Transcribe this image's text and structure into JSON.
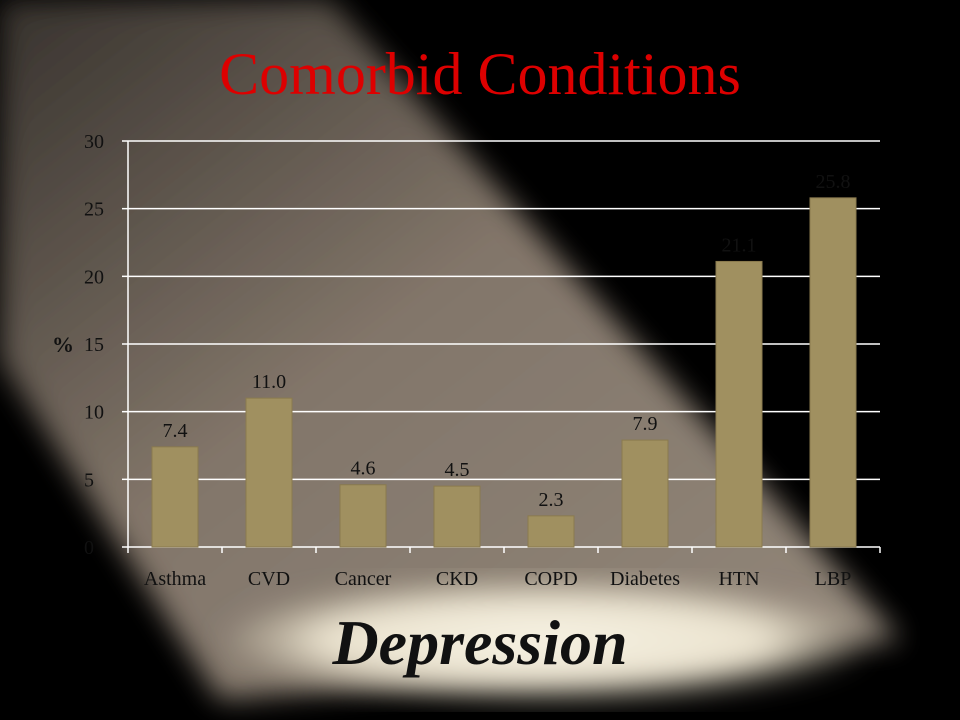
{
  "slide": {
    "title": "Comorbid Conditions",
    "footer": "Depression"
  },
  "colors": {
    "title": "#dd0000",
    "bar": "#a09060",
    "grid": "#ffffff",
    "text": "#111111"
  },
  "chart_data": {
    "type": "bar",
    "title": "",
    "xlabel": "",
    "ylabel": "%",
    "ylim": [
      0,
      30
    ],
    "yticks": [
      0,
      5,
      10,
      15,
      20,
      25,
      30
    ],
    "categories": [
      "Asthma",
      "CVD",
      "Cancer",
      "CKD",
      "COPD",
      "Diabetes",
      "HTN",
      "LBP"
    ],
    "values": [
      7.4,
      11.0,
      4.6,
      4.5,
      2.3,
      7.9,
      21.1,
      25.8
    ],
    "data_labels": [
      "7.4",
      "11.0",
      "4.6",
      "4.5",
      "2.3",
      "7.9",
      "21.1",
      "25.8"
    ],
    "grid": true,
    "legend": "none"
  }
}
